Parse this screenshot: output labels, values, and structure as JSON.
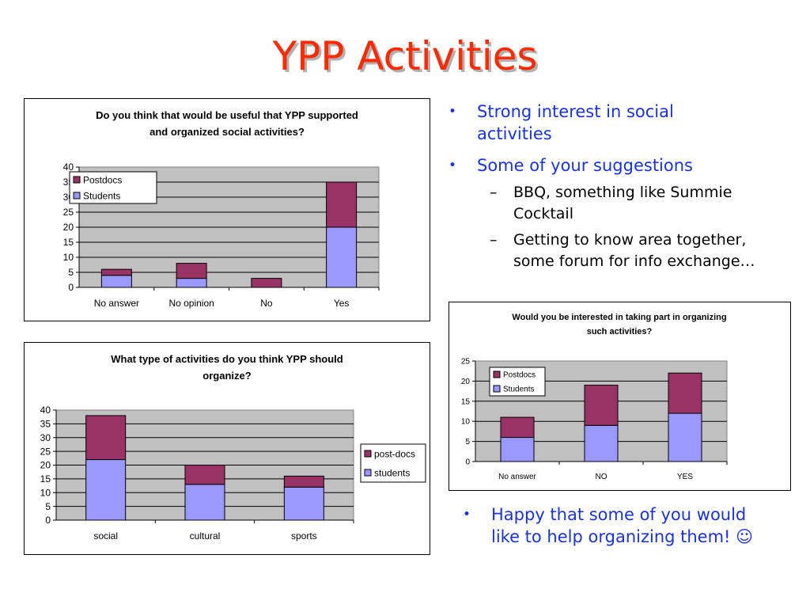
{
  "title": "YPP Activities",
  "colors": {
    "title": "#ff2a00",
    "bullet": "#1a33d8",
    "postdocs": "#993366",
    "students": "#9999ff",
    "plot_bg": "#c0c0c0"
  },
  "bullets": {
    "b1": "Strong interest in social activities",
    "b1_line1": "Strong interest in social",
    "b1_line2": "activities",
    "b2": "Some of your suggestions",
    "s1_line1": "BBQ, something like Summie",
    "s1_line2": "Cocktail",
    "s2_line1": "Getting to know area together,",
    "s2_line2": "some forum for info exchange…",
    "b3_line1": "Happy that some of you would",
    "b3_line2": "like to help organizing them! ☺",
    "dot": "•",
    "dash": "–"
  },
  "chart_data": [
    {
      "type": "bar",
      "stacked": true,
      "title": "Do you think that would be useful that YPP supported and organized social activities?",
      "title_lines": [
        "Do you think that would be useful that YPP supported",
        "and organized social activities?"
      ],
      "categories": [
        "No answer",
        "No opinion",
        "No",
        "Yes"
      ],
      "series": [
        {
          "name": "Students",
          "values": [
            4,
            3,
            0,
            20
          ]
        },
        {
          "name": "Postdocs",
          "values": [
            2,
            5,
            3,
            15
          ]
        }
      ],
      "ylim": [
        0,
        40
      ],
      "yticks": [
        "0",
        "5",
        "10",
        "15",
        "20",
        "25",
        "30",
        "35",
        "40"
      ],
      "grid": true,
      "legend": "top-left inside plot"
    },
    {
      "type": "bar",
      "stacked": true,
      "title": "What type of activities do you think YPP should organize?",
      "title_lines": [
        "What type of activities do you think YPP should",
        "organize?"
      ],
      "categories": [
        "social",
        "cultural",
        "sports"
      ],
      "series": [
        {
          "name": "students",
          "values": [
            22,
            13,
            12
          ]
        },
        {
          "name": "post-docs",
          "values": [
            16,
            7,
            4
          ]
        }
      ],
      "ylim": [
        0,
        40
      ],
      "yticks": [
        "0",
        "5",
        "10",
        "15",
        "20",
        "25",
        "30",
        "35",
        "40"
      ],
      "grid": true,
      "legend": "right"
    },
    {
      "type": "bar",
      "stacked": true,
      "title": "Would you be interested in taking part in organizing such activities?",
      "title_lines": [
        "Would you be interested in taking part in organizing",
        "such activities?"
      ],
      "categories": [
        "No answer",
        "NO",
        "YES"
      ],
      "series": [
        {
          "name": "Students",
          "values": [
            6,
            9,
            12
          ]
        },
        {
          "name": "Postdocs",
          "values": [
            5,
            10,
            10
          ]
        }
      ],
      "ylim": [
        0,
        25
      ],
      "yticks": [
        "0",
        "5",
        "10",
        "15",
        "20",
        "25"
      ],
      "grid": true,
      "legend": "top-left inside plot"
    }
  ]
}
